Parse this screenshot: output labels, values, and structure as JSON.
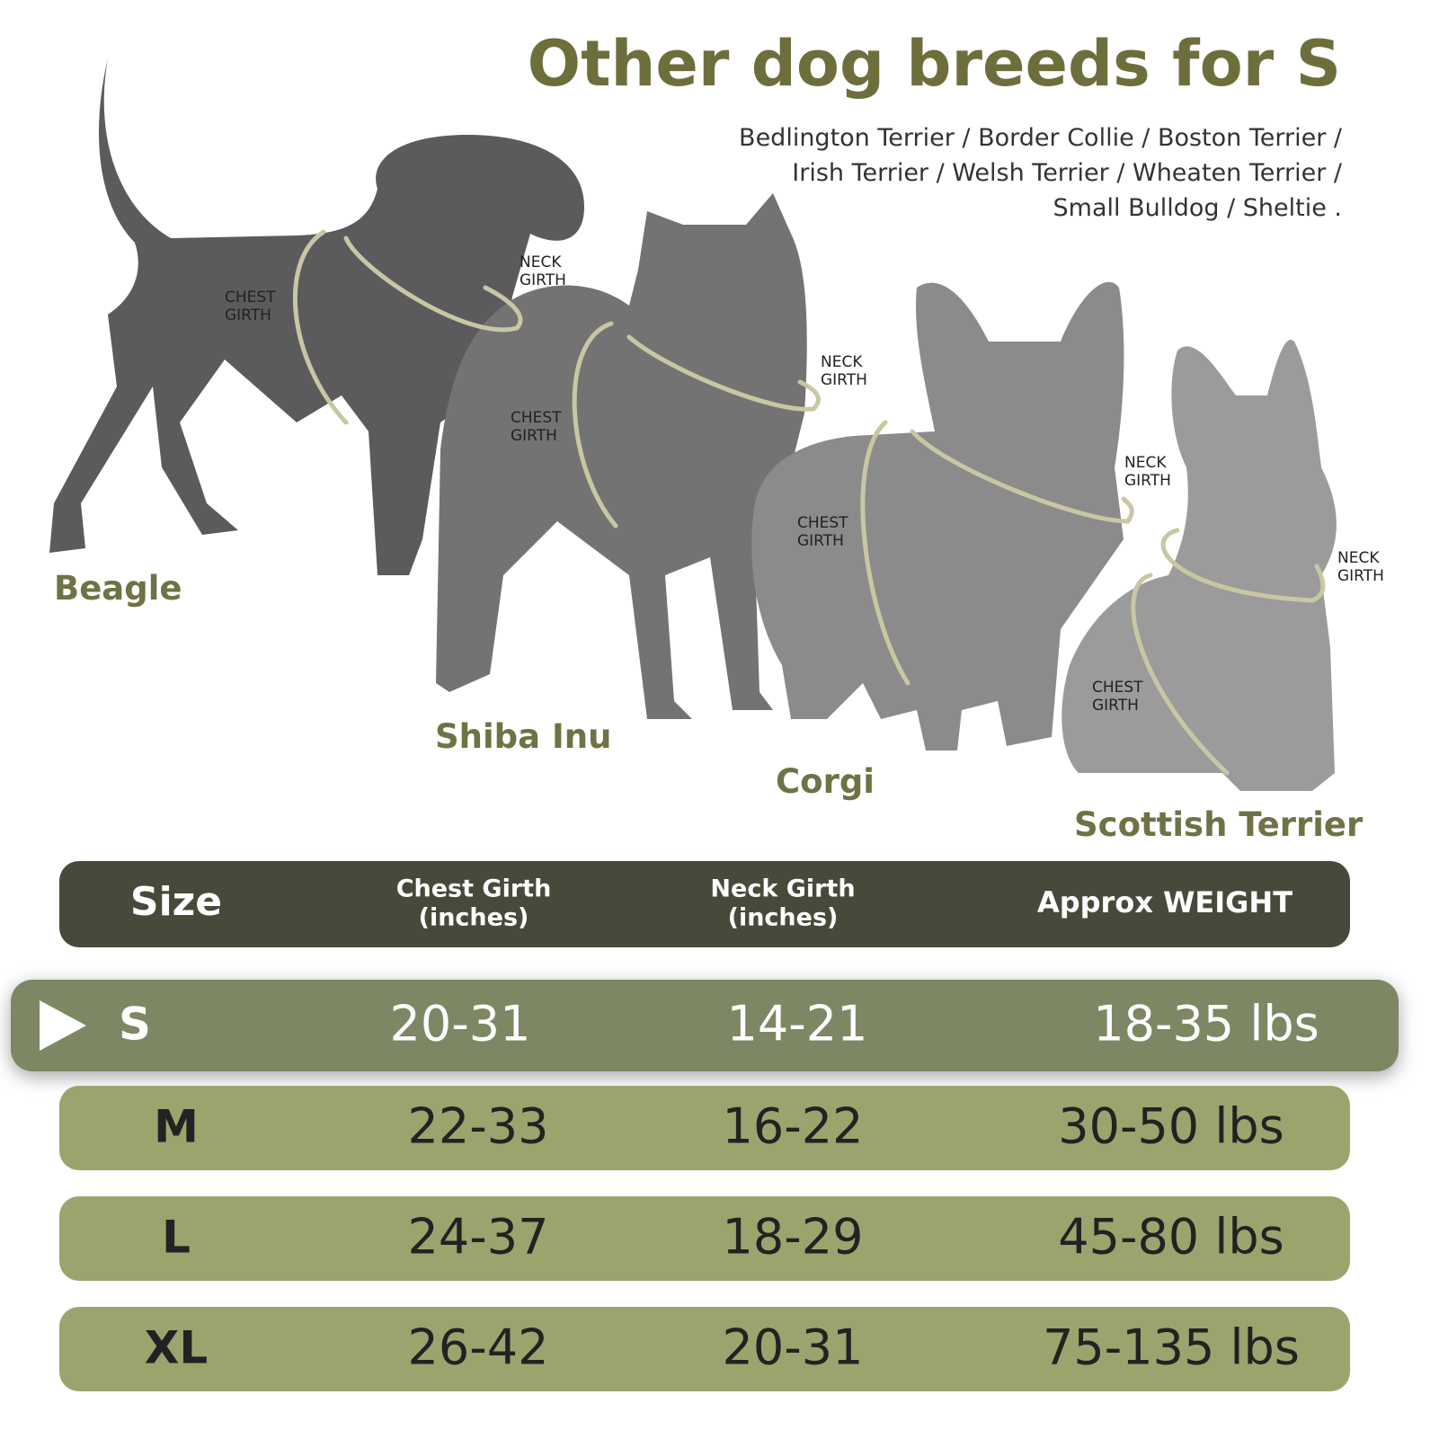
{
  "header": {
    "title": "Other dog breeds for S",
    "breed_lines": [
      "Bedlington Terrier / Border Collie / Boston Terrier /",
      "Irish Terrier / Welsh Terrier / Wheaten Terrier /",
      "Small Bulldog / Sheltie ."
    ]
  },
  "dogs": [
    {
      "name": "Beagle",
      "chest": [
        "CHEST",
        "GIRTH"
      ],
      "neck": [
        "NECK",
        "GIRTH"
      ]
    },
    {
      "name": "Shiba Inu",
      "chest": [
        "CHEST",
        "GIRTH"
      ],
      "neck": [
        "NECK",
        "GIRTH"
      ]
    },
    {
      "name": "Corgi",
      "chest": [
        "CHEST",
        "GIRTH"
      ],
      "neck": [
        "NECK",
        "GIRTH"
      ]
    },
    {
      "name": "Scottish Terrier",
      "chest": [
        "CHEST",
        "GIRTH"
      ],
      "neck": [
        "NECK",
        "GIRTH"
      ]
    }
  ],
  "table": {
    "columns": [
      [
        "Size"
      ],
      [
        "Chest Girth",
        "(inches)"
      ],
      [
        "Neck Girth",
        "(inches)"
      ],
      [
        "Approx WEIGHT"
      ]
    ],
    "rows": [
      [
        "S",
        "20-31",
        "14-21",
        "18-35 lbs"
      ],
      [
        "M",
        "22-33",
        "16-22",
        "30-50 lbs"
      ],
      [
        "L",
        "24-37",
        "18-29",
        "45-80 lbs"
      ],
      [
        "XL",
        "26-42",
        "20-31",
        "75-135 lbs"
      ]
    ],
    "highlighted_row": 0
  }
}
